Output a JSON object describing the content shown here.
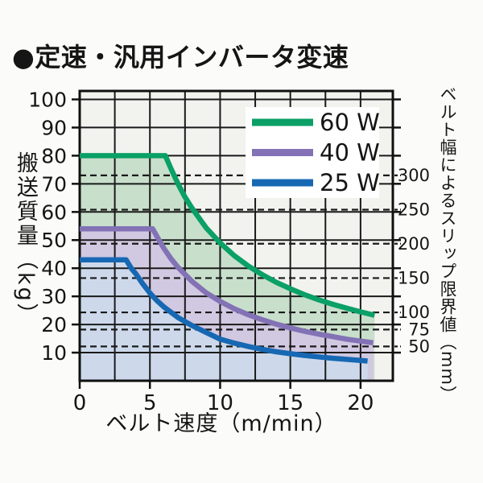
{
  "title": "●定速・汎用インバータ変速",
  "chart_data": {
    "type": "line",
    "title": "定速・汎用インバータ変速",
    "xlabel": "ベルト速度（m/min）",
    "ylabel": "搬送質量（kg）",
    "y2label": "ベルト幅によるスリップ限界値（mm）",
    "xlim": [
      0,
      22.3
    ],
    "ylim": [
      0,
      103
    ],
    "x_ticks": [
      0,
      5,
      10,
      15,
      20
    ],
    "x_grid_step": 2.5,
    "y_ticks": [
      10,
      20,
      30,
      40,
      50,
      60,
      70,
      80,
      90,
      100
    ],
    "grid": "on",
    "legend_position": "upper right",
    "colors": {
      "plot_bg": "#f2f2ef",
      "grid": "#1a1a1a",
      "frame": "#101010",
      "legend_bg": "#ffffff"
    },
    "right_axis": {
      "unit": "mm",
      "description": "belt-width slip limit shown as dashed lines",
      "ticks": [
        {
          "mm": "300",
          "kg": 73.0
        },
        {
          "mm": "250",
          "kg": 60.8
        },
        {
          "mm": "200",
          "kg": 48.7
        },
        {
          "mm": "150",
          "kg": 36.5
        },
        {
          "mm": "100",
          "kg": 24.3
        },
        {
          "mm": "75",
          "kg": 18.2
        },
        {
          "mm": "50",
          "kg": 12.2
        }
      ]
    },
    "series": [
      {
        "name": "60 W",
        "color": "#0aa066",
        "fill": "#c8dfcb",
        "flat_value_kg": 80,
        "flat_until_x": 6.1,
        "points": [
          [
            0,
            80
          ],
          [
            6.1,
            80
          ],
          [
            6.5,
            75.4
          ],
          [
            7,
            70
          ],
          [
            7.5,
            65.3
          ],
          [
            8,
            61.3
          ],
          [
            9,
            54.4
          ],
          [
            10,
            49
          ],
          [
            11,
            44.5
          ],
          [
            12,
            40.8
          ],
          [
            13,
            37.7
          ],
          [
            14,
            35
          ],
          [
            15,
            32.7
          ],
          [
            16,
            30.6
          ],
          [
            17,
            28.8
          ],
          [
            18,
            27.2
          ],
          [
            19,
            25.8
          ],
          [
            20,
            24.5
          ],
          [
            21,
            23.3
          ]
        ]
      },
      {
        "name": "40 W",
        "color": "#8372b5",
        "fill": "#d1c8e1",
        "flat_value_kg": 54,
        "flat_until_x": 5.2,
        "points": [
          [
            0,
            54
          ],
          [
            5.2,
            54
          ],
          [
            5.6,
            50.4
          ],
          [
            6,
            47
          ],
          [
            6.5,
            43.4
          ],
          [
            7,
            40.3
          ],
          [
            8,
            35.3
          ],
          [
            9,
            31.3
          ],
          [
            10,
            28.2
          ],
          [
            11,
            25.6
          ],
          [
            12,
            23.5
          ],
          [
            13,
            21.7
          ],
          [
            14,
            20.1
          ],
          [
            15,
            18.8
          ],
          [
            16,
            17.6
          ],
          [
            17,
            16.6
          ],
          [
            18,
            15.7
          ],
          [
            19,
            14.8
          ],
          [
            20,
            14.1
          ],
          [
            20.9,
            13.5
          ]
        ]
      },
      {
        "name": "25 W",
        "color": "#1768b3",
        "fill": "#cdd9eb",
        "flat_value_kg": 43,
        "flat_until_x": 3.3,
        "points": [
          [
            0,
            43
          ],
          [
            3.3,
            43
          ],
          [
            3.7,
            39.8
          ],
          [
            4,
            38
          ],
          [
            4.5,
            34.4
          ],
          [
            5,
            31.2
          ],
          [
            5.5,
            28.5
          ],
          [
            6,
            26.2
          ],
          [
            7,
            22.5
          ],
          [
            8,
            19.6
          ],
          [
            9,
            17.2
          ],
          [
            10,
            14.8
          ],
          [
            11,
            13.4
          ],
          [
            12,
            12.2
          ],
          [
            13,
            11.2
          ],
          [
            14,
            10.3
          ],
          [
            15,
            9.6
          ],
          [
            16,
            9
          ],
          [
            17,
            8.5
          ],
          [
            18,
            8
          ],
          [
            19,
            7.6
          ],
          [
            20,
            7.2
          ],
          [
            20.5,
            7
          ]
        ]
      }
    ]
  }
}
